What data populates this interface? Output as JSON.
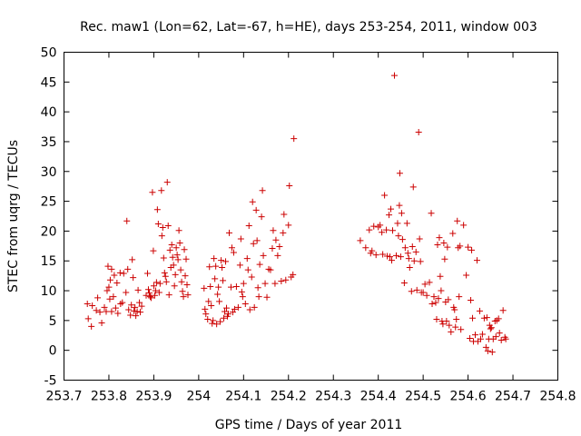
{
  "chart_data": {
    "type": "scatter",
    "title": "Rec. maw1 (Lon=62, Lat=-67, h=HE), days 253-254, 2011, window 003",
    "xlabel": "GPS time / Days of year 2011",
    "ylabel": "STEC from uqrg / TECUs",
    "xlim": [
      253.7,
      254.8
    ],
    "ylim": [
      -5,
      50
    ],
    "xticks": [
      253.7,
      253.8,
      253.9,
      254.0,
      254.1,
      254.2,
      254.3,
      254.4,
      254.5,
      254.6,
      254.7,
      254.8
    ],
    "xtick_labels": [
      "253.7",
      "253.8",
      "253.9",
      "254",
      "254.1",
      "254.2",
      "254.3",
      "254.4",
      "254.5",
      "254.6",
      "254.7",
      "254.8"
    ],
    "yticks": [
      -5,
      0,
      5,
      10,
      15,
      20,
      25,
      30,
      35,
      40,
      45,
      50
    ],
    "ytick_labels": [
      "-5",
      "0",
      "5",
      "10",
      "15",
      "20",
      "25",
      "30",
      "35",
      "40",
      "45",
      "50"
    ],
    "grid": false,
    "marker": "plus",
    "marker_color": "#cc0000",
    "points": [
      [
        253.752,
        7.8
      ],
      [
        253.754,
        5.3
      ],
      [
        253.761,
        4.0
      ],
      [
        253.763,
        7.5
      ],
      [
        253.772,
        6.7
      ],
      [
        253.775,
        8.8
      ],
      [
        253.78,
        6.4
      ],
      [
        253.784,
        4.6
      ],
      [
        253.79,
        7.2
      ],
      [
        253.794,
        6.5
      ],
      [
        253.796,
        10.0
      ],
      [
        253.798,
        14.1
      ],
      [
        253.8,
        10.6
      ],
      [
        253.802,
        8.6
      ],
      [
        253.803,
        11.8
      ],
      [
        253.806,
        13.6
      ],
      [
        253.806,
        6.5
      ],
      [
        253.81,
        9.0
      ],
      [
        253.812,
        12.6
      ],
      [
        253.815,
        7.1
      ],
      [
        253.818,
        11.3
      ],
      [
        253.82,
        6.2
      ],
      [
        253.825,
        13.0
      ],
      [
        253.826,
        7.8
      ],
      [
        253.83,
        8.0
      ],
      [
        253.833,
        12.9
      ],
      [
        253.838,
        9.7
      ],
      [
        253.84,
        21.7
      ],
      [
        253.842,
        13.6
      ],
      [
        253.844,
        6.8
      ],
      [
        253.848,
        5.9
      ],
      [
        253.85,
        7.6
      ],
      [
        253.852,
        15.2
      ],
      [
        253.854,
        12.2
      ],
      [
        253.856,
        6.6
      ],
      [
        253.858,
        7.2
      ],
      [
        253.86,
        5.8
      ],
      [
        253.863,
        6.5
      ],
      [
        253.865,
        10.1
      ],
      [
        253.868,
        8.0
      ],
      [
        253.87,
        6.4
      ],
      [
        253.873,
        7.4
      ],
      [
        253.883,
        9.2
      ],
      [
        253.886,
        12.9
      ],
      [
        253.888,
        10.2
      ],
      [
        253.89,
        9.6
      ],
      [
        253.892,
        9.0
      ],
      [
        253.894,
        8.8
      ],
      [
        253.897,
        26.5
      ],
      [
        253.899,
        16.7
      ],
      [
        253.9,
        10.8
      ],
      [
        253.902,
        9.2
      ],
      [
        253.904,
        10.0
      ],
      [
        253.906,
        11.4
      ],
      [
        253.908,
        23.6
      ],
      [
        253.91,
        21.2
      ],
      [
        253.912,
        9.7
      ],
      [
        253.914,
        11.2
      ],
      [
        253.917,
        26.8
      ],
      [
        253.918,
        19.2
      ],
      [
        253.92,
        20.6
      ],
      [
        253.922,
        15.5
      ],
      [
        253.924,
        13.0
      ],
      [
        253.926,
        12.4
      ],
      [
        253.928,
        11.5
      ],
      [
        253.93,
        28.2
      ],
      [
        253.932,
        20.9
      ],
      [
        253.934,
        9.3
      ],
      [
        253.936,
        16.8
      ],
      [
        253.938,
        13.9
      ],
      [
        253.94,
        17.7
      ],
      [
        253.942,
        15.6
      ],
      [
        253.944,
        14.3
      ],
      [
        253.946,
        10.8
      ],
      [
        253.948,
        12.7
      ],
      [
        253.95,
        17.2
      ],
      [
        253.952,
        16.0
      ],
      [
        253.954,
        15.2
      ],
      [
        253.956,
        20.1
      ],
      [
        253.958,
        18.0
      ],
      [
        253.96,
        13.5
      ],
      [
        253.962,
        11.5
      ],
      [
        253.964,
        9.9
      ],
      [
        253.966,
        9.0
      ],
      [
        253.968,
        16.9
      ],
      [
        253.97,
        12.5
      ],
      [
        253.972,
        15.3
      ],
      [
        253.974,
        11.0
      ],
      [
        253.976,
        9.3
      ],
      [
        254.012,
        10.4
      ],
      [
        254.014,
        6.9
      ],
      [
        254.016,
        6.1
      ],
      [
        254.02,
        5.2
      ],
      [
        254.022,
        8.2
      ],
      [
        254.024,
        14.0
      ],
      [
        254.026,
        10.7
      ],
      [
        254.028,
        7.5
      ],
      [
        254.03,
        4.5
      ],
      [
        254.032,
        5.0
      ],
      [
        254.034,
        15.4
      ],
      [
        254.036,
        12.0
      ],
      [
        254.038,
        14.1
      ],
      [
        254.04,
        4.4
      ],
      [
        254.042,
        9.4
      ],
      [
        254.044,
        10.6
      ],
      [
        254.046,
        8.2
      ],
      [
        254.048,
        4.8
      ],
      [
        254.05,
        15.1
      ],
      [
        254.052,
        13.9
      ],
      [
        254.054,
        11.7
      ],
      [
        254.056,
        5.4
      ],
      [
        254.058,
        6.5
      ],
      [
        254.06,
        14.9
      ],
      [
        254.062,
        7.1
      ],
      [
        254.064,
        5.7
      ],
      [
        254.066,
        6.1
      ],
      [
        254.068,
        19.7
      ],
      [
        254.072,
        10.6
      ],
      [
        254.074,
        17.2
      ],
      [
        254.076,
        6.4
      ],
      [
        254.078,
        16.4
      ],
      [
        254.08,
        6.9
      ],
      [
        254.084,
        10.7
      ],
      [
        254.088,
        7.2
      ],
      [
        254.092,
        14.3
      ],
      [
        254.094,
        18.7
      ],
      [
        254.096,
        9.8
      ],
      [
        254.098,
        9.0
      ],
      [
        254.1,
        11.2
      ],
      [
        254.104,
        7.8
      ],
      [
        254.108,
        15.4
      ],
      [
        254.11,
        13.5
      ],
      [
        254.112,
        20.9
      ],
      [
        254.114,
        6.8
      ],
      [
        254.118,
        12.3
      ],
      [
        254.12,
        24.9
      ],
      [
        254.122,
        17.9
      ],
      [
        254.124,
        7.2
      ],
      [
        254.128,
        23.5
      ],
      [
        254.13,
        18.4
      ],
      [
        254.132,
        10.5
      ],
      [
        254.134,
        9.0
      ],
      [
        254.136,
        14.4
      ],
      [
        254.14,
        22.4
      ],
      [
        254.142,
        26.8
      ],
      [
        254.144,
        15.9
      ],
      [
        254.148,
        11.2
      ],
      [
        254.152,
        8.9
      ],
      [
        254.156,
        13.6
      ],
      [
        254.16,
        13.5
      ],
      [
        254.164,
        17.1
      ],
      [
        254.166,
        20.1
      ],
      [
        254.17,
        11.2
      ],
      [
        254.172,
        18.5
      ],
      [
        254.176,
        15.9
      ],
      [
        254.18,
        17.4
      ],
      [
        254.184,
        11.6
      ],
      [
        254.188,
        19.7
      ],
      [
        254.19,
        22.8
      ],
      [
        254.194,
        11.8
      ],
      [
        254.2,
        21.0
      ],
      [
        254.202,
        27.6
      ],
      [
        254.206,
        12.3
      ],
      [
        254.21,
        12.7
      ],
      [
        254.212,
        35.5
      ],
      [
        254.36,
        18.4
      ],
      [
        254.372,
        17.2
      ],
      [
        254.38,
        20.2
      ],
      [
        254.383,
        16.3
      ],
      [
        254.386,
        16.7
      ],
      [
        254.39,
        20.8
      ],
      [
        254.395,
        16.0
      ],
      [
        254.4,
        20.7
      ],
      [
        254.404,
        21.0
      ],
      [
        254.408,
        19.8
      ],
      [
        254.41,
        16.1
      ],
      [
        254.414,
        26.0
      ],
      [
        254.418,
        20.2
      ],
      [
        254.42,
        15.8
      ],
      [
        254.424,
        22.7
      ],
      [
        254.426,
        15.7
      ],
      [
        254.428,
        23.7
      ],
      [
        254.43,
        15.1
      ],
      [
        254.432,
        20.1
      ],
      [
        254.436,
        46.1
      ],
      [
        254.44,
        15.9
      ],
      [
        254.443,
        21.3
      ],
      [
        254.445,
        19.2
      ],
      [
        254.447,
        24.3
      ],
      [
        254.448,
        29.7
      ],
      [
        254.45,
        15.7
      ],
      [
        254.452,
        23.0
      ],
      [
        254.454,
        18.6
      ],
      [
        254.458,
        11.3
      ],
      [
        254.46,
        17.2
      ],
      [
        254.464,
        21.3
      ],
      [
        254.466,
        16.3
      ],
      [
        254.468,
        15.4
      ],
      [
        254.47,
        13.9
      ],
      [
        254.474,
        9.9
      ],
      [
        254.476,
        17.4
      ],
      [
        254.478,
        27.4
      ],
      [
        254.48,
        15.0
      ],
      [
        254.484,
        16.5
      ],
      [
        254.486,
        10.1
      ],
      [
        254.49,
        36.6
      ],
      [
        254.492,
        18.7
      ],
      [
        254.494,
        14.9
      ],
      [
        254.496,
        9.7
      ],
      [
        254.5,
        9.7
      ],
      [
        254.504,
        11.1
      ],
      [
        254.508,
        9.2
      ],
      [
        254.514,
        11.4
      ],
      [
        254.518,
        23.0
      ],
      [
        254.52,
        7.8
      ],
      [
        254.524,
        9.0
      ],
      [
        254.528,
        8.0
      ],
      [
        254.53,
        5.2
      ],
      [
        254.532,
        17.7
      ],
      [
        254.534,
        8.7
      ],
      [
        254.536,
        18.9
      ],
      [
        254.538,
        12.4
      ],
      [
        254.54,
        10.0
      ],
      [
        254.542,
        4.9
      ],
      [
        254.544,
        4.4
      ],
      [
        254.546,
        18.0
      ],
      [
        254.548,
        15.3
      ],
      [
        254.55,
        8.1
      ],
      [
        254.552,
        4.9
      ],
      [
        254.554,
        17.3
      ],
      [
        254.556,
        8.5
      ],
      [
        254.558,
        4.2
      ],
      [
        254.562,
        3.1
      ],
      [
        254.566,
        19.6
      ],
      [
        254.568,
        7.2
      ],
      [
        254.57,
        6.8
      ],
      [
        254.572,
        3.9
      ],
      [
        254.574,
        5.2
      ],
      [
        254.576,
        21.7
      ],
      [
        254.578,
        17.2
      ],
      [
        254.58,
        9.0
      ],
      [
        254.582,
        17.5
      ],
      [
        254.584,
        3.5
      ],
      [
        254.59,
        21.0
      ],
      [
        254.596,
        12.6
      ],
      [
        254.6,
        17.3
      ],
      [
        254.604,
        2.0
      ],
      [
        254.606,
        8.4
      ],
      [
        254.608,
        16.8
      ],
      [
        254.61,
        5.4
      ],
      [
        254.612,
        1.5
      ],
      [
        254.616,
        2.6
      ],
      [
        254.62,
        15.1
      ],
      [
        254.622,
        1.5
      ],
      [
        254.626,
        6.6
      ],
      [
        254.628,
        1.9
      ],
      [
        254.632,
        2.7
      ],
      [
        254.636,
        5.4
      ],
      [
        254.64,
        0.5
      ],
      [
        254.642,
        5.5
      ],
      [
        254.644,
        -0.1
      ],
      [
        254.646,
        1.9
      ],
      [
        254.648,
        4.2
      ],
      [
        254.65,
        3.6
      ],
      [
        254.652,
        3.8
      ],
      [
        254.654,
        -0.3
      ],
      [
        254.656,
        1.9
      ],
      [
        254.66,
        4.9
      ],
      [
        254.662,
        2.3
      ],
      [
        254.664,
        5.0
      ],
      [
        254.668,
        5.3
      ],
      [
        254.67,
        2.9
      ],
      [
        254.674,
        1.7
      ],
      [
        254.678,
        6.7
      ],
      [
        254.682,
        2.2
      ],
      [
        254.684,
        1.9
      ]
    ]
  }
}
